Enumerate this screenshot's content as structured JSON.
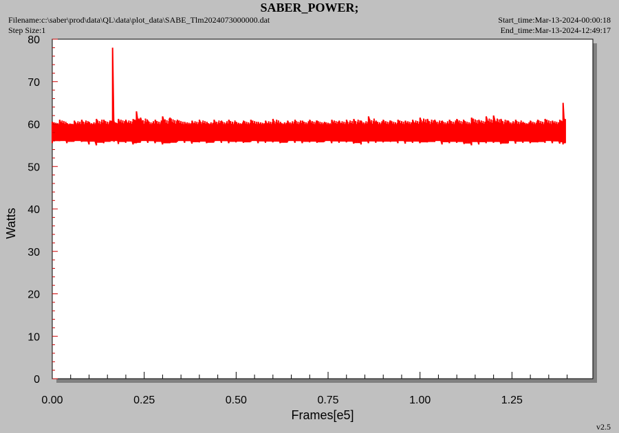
{
  "header": {
    "title": "SABER_POWER;",
    "filename": "Filename:c:\\saber\\prod\\data\\QL\\data\\plot_data\\SABE_Tlm2024073000000.dat",
    "step_size": "Step Size:1",
    "start_time": "Start_time:Mar-13-2024-00:00:18",
    "end_time": "End_time:Mar-13-2024-12:49:17"
  },
  "version": "v2.5",
  "colors": {
    "background": "#c0c0c0",
    "plot_area": "#ffffff",
    "series": "#ff0000",
    "ticks": "#cc0000"
  },
  "chart_data": {
    "type": "line",
    "title": "SABER_POWER;",
    "xlabel": "Frames[e5]",
    "ylabel": "Watts",
    "xlim": [
      0,
      1.47
    ],
    "ylim": [
      0,
      80
    ],
    "x_ticks": [
      "0.00",
      "0.25",
      "0.50",
      "0.75",
      "1.00",
      "1.25"
    ],
    "x_tick_values": [
      0,
      0.25,
      0.5,
      0.75,
      1.0,
      1.25
    ],
    "y_ticks": [
      "0",
      "10",
      "20",
      "30",
      "40",
      "50",
      "60",
      "70",
      "80"
    ],
    "y_tick_values": [
      0,
      10,
      20,
      30,
      40,
      50,
      60,
      70,
      80
    ],
    "grid": false,
    "series": [
      {
        "x": [
          0.0,
          0.02,
          0.04,
          0.06,
          0.08,
          0.1,
          0.12,
          0.14,
          0.16,
          0.164,
          0.168,
          0.18,
          0.2,
          0.22,
          0.229,
          0.24,
          0.26,
          0.28,
          0.3,
          0.32,
          0.34,
          0.36,
          0.38,
          0.4,
          0.42,
          0.44,
          0.46,
          0.48,
          0.5,
          0.52,
          0.54,
          0.56,
          0.58,
          0.6,
          0.62,
          0.64,
          0.66,
          0.68,
          0.7,
          0.72,
          0.74,
          0.76,
          0.78,
          0.8,
          0.82,
          0.84,
          0.86,
          0.88,
          0.9,
          0.92,
          0.94,
          0.96,
          0.98,
          1.0,
          1.02,
          1.04,
          1.06,
          1.08,
          1.1,
          1.12,
          1.14,
          1.16,
          1.18,
          1.2,
          1.22,
          1.24,
          1.26,
          1.28,
          1.3,
          1.32,
          1.34,
          1.36,
          1.38,
          1.389,
          1.395
        ],
        "min": [
          55.5,
          56.0,
          55.5,
          56.0,
          55.8,
          55.2,
          55.0,
          55.5,
          56.0,
          56.0,
          55.8,
          55.3,
          55.6,
          55.2,
          55.5,
          55.8,
          55.6,
          55.5,
          55.2,
          55.5,
          55.8,
          55.6,
          55.4,
          55.7,
          55.5,
          55.8,
          55.6,
          55.5,
          55.7,
          55.6,
          55.8,
          55.5,
          55.6,
          55.7,
          55.5,
          55.8,
          55.6,
          55.5,
          55.7,
          55.6,
          55.8,
          55.5,
          55.6,
          55.7,
          55.4,
          55.2,
          55.5,
          55.6,
          55.7,
          55.8,
          55.5,
          55.4,
          55.6,
          55.5,
          55.7,
          55.8,
          55.2,
          55.5,
          55.6,
          55.3,
          55.0,
          55.2,
          55.5,
          55.6,
          55.3,
          55.5,
          55.4,
          55.6,
          55.5,
          55.7,
          55.6,
          55.5,
          55.4,
          55.2,
          55.6
        ],
        "max": [
          60.5,
          61.0,
          60.2,
          60.8,
          61.0,
          60.5,
          61.2,
          61.0,
          60.8,
          78.0,
          60.5,
          61.2,
          61.0,
          61.2,
          63.0,
          61.5,
          60.8,
          61.0,
          61.8,
          61.5,
          61.0,
          60.5,
          60.8,
          61.0,
          60.5,
          61.0,
          60.8,
          61.0,
          60.5,
          60.8,
          61.0,
          60.5,
          60.8,
          61.2,
          60.5,
          60.8,
          61.0,
          60.8,
          61.0,
          60.8,
          60.5,
          61.0,
          60.8,
          61.0,
          61.2,
          60.8,
          61.8,
          60.8,
          61.0,
          60.8,
          61.0,
          60.8,
          61.0,
          61.5,
          61.2,
          61.0,
          60.8,
          61.0,
          61.2,
          60.8,
          61.5,
          61.0,
          61.8,
          62.0,
          61.2,
          60.8,
          61.0,
          60.5,
          60.8,
          61.0,
          61.2,
          60.8,
          61.0,
          65.0,
          61.2
        ]
      }
    ]
  }
}
